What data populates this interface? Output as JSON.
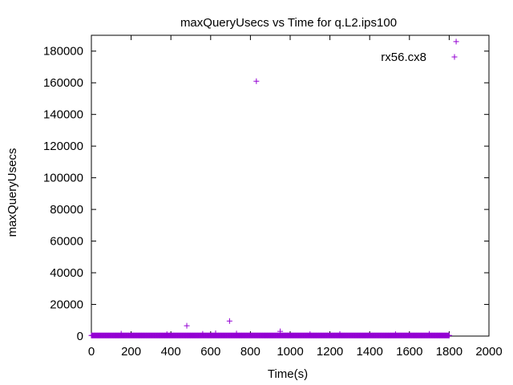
{
  "chart_data": {
    "type": "scatter",
    "title": "maxQueryUsecs vs Time for q.L2.ips100",
    "xlabel": "Time(s)",
    "ylabel": "maxQueryUsecs",
    "xlim": [
      0,
      2000
    ],
    "ylim": [
      0,
      190000
    ],
    "xticks": [
      "0",
      "200",
      "400",
      "600",
      "800",
      "1000",
      "1200",
      "1400",
      "1600",
      "1800",
      "2000"
    ],
    "yticks": [
      "0",
      "20000",
      "40000",
      "60000",
      "80000",
      "100000",
      "120000",
      "140000",
      "160000",
      "180000"
    ],
    "grid": false,
    "legend_position": "top-right",
    "series": [
      {
        "name": "rx56.cx8",
        "color": "#9400d3",
        "marker": "plus",
        "baseline": {
          "x_start": 0,
          "x_end": 1800,
          "x_step": 3,
          "y": 400,
          "description_values": "dense run of near-zero points along the x axis"
        },
        "points": [
          {
            "x": 150,
            "y": 1500
          },
          {
            "x": 380,
            "y": 1200
          },
          {
            "x": 480,
            "y": 6500
          },
          {
            "x": 560,
            "y": 1400
          },
          {
            "x": 625,
            "y": 1800
          },
          {
            "x": 695,
            "y": 9500
          },
          {
            "x": 730,
            "y": 1600
          },
          {
            "x": 830,
            "y": 161000
          },
          {
            "x": 950,
            "y": 3000
          },
          {
            "x": 1100,
            "y": 1200
          },
          {
            "x": 1250,
            "y": 1300
          },
          {
            "x": 1530,
            "y": 1200
          },
          {
            "x": 1700,
            "y": 1400
          },
          {
            "x": 1835,
            "y": 186000
          }
        ]
      }
    ]
  }
}
